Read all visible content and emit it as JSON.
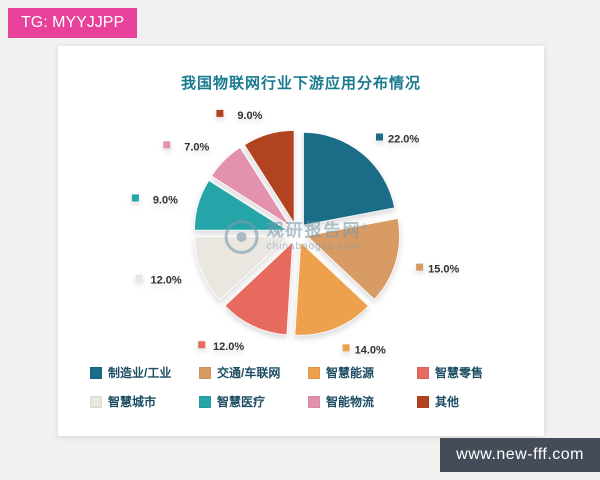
{
  "badges": {
    "tg": "TG: MYYJJPP",
    "site": "www.new-fff.com"
  },
  "chart_data": {
    "type": "pie",
    "title": "我国物联网行业下游应用分布情况",
    "legend_position": "bottom",
    "start_angle_deg": -90,
    "direction": "clockwise",
    "watermark": {
      "name": "观研报告网",
      "reg": "®",
      "url": "chinabaogao.com"
    },
    "series": [
      {
        "label": "制造业/工业",
        "value": 22.0,
        "display": "22.0%",
        "color": "#1a6c87"
      },
      {
        "label": "交通/车联网",
        "value": 15.0,
        "display": "15.0%",
        "color": "#d89b63"
      },
      {
        "label": "智慧能源",
        "value": 14.0,
        "display": "14.0%",
        "color": "#eda14c"
      },
      {
        "label": "智慧零售",
        "value": 12.0,
        "display": "12.0%",
        "color": "#e66a5e"
      },
      {
        "label": "智慧城市",
        "value": 12.0,
        "display": "12.0%",
        "color": "#e9e7df"
      },
      {
        "label": "智慧医疗",
        "value": 9.0,
        "display": "9.0%",
        "color": "#25a5a7"
      },
      {
        "label": "智能物流",
        "value": 7.0,
        "display": "7.0%",
        "color": "#e391af"
      },
      {
        "label": "其他",
        "value": 9.0,
        "display": "9.0%",
        "color": "#b24320"
      }
    ]
  }
}
